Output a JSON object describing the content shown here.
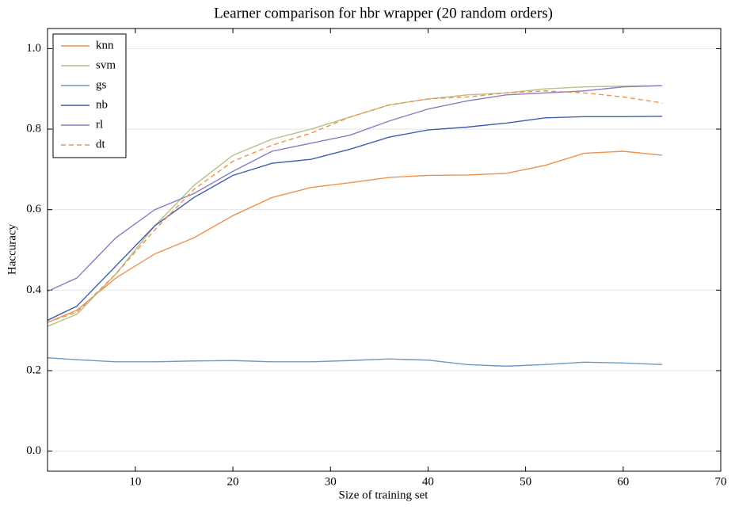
{
  "chart_data": {
    "type": "line",
    "title": "Learner comparison for hbr wrapper (20 random orders)",
    "x_label": "Size of training set",
    "y_label": "Haccuracy",
    "x": [
      1,
      4,
      8,
      12,
      16,
      20,
      24,
      28,
      32,
      36,
      40,
      44,
      48,
      52,
      56,
      60,
      64
    ],
    "series": [
      {
        "name": "knn",
        "color": "#f0914a",
        "linestyle": "solid",
        "values": [
          0.32,
          0.35,
          0.43,
          0.49,
          0.53,
          0.585,
          0.63,
          0.655,
          0.667,
          0.68,
          0.685,
          0.686,
          0.69,
          0.71,
          0.74,
          0.745,
          0.735
        ]
      },
      {
        "name": "svm",
        "color": "#b5c08a",
        "linestyle": "solid",
        "values": [
          0.31,
          0.34,
          0.44,
          0.56,
          0.66,
          0.735,
          0.775,
          0.8,
          0.83,
          0.86,
          0.875,
          0.885,
          0.89,
          0.9,
          0.905,
          0.907,
          0.908
        ]
      },
      {
        "name": "gs",
        "color": "#6b9ac4",
        "linestyle": "solid",
        "values": [
          0.232,
          0.227,
          0.222,
          0.222,
          0.224,
          0.225,
          0.222,
          0.222,
          0.225,
          0.229,
          0.226,
          0.215,
          0.211,
          0.215,
          0.221,
          0.219,
          0.215
        ]
      },
      {
        "name": "nb",
        "color": "#3e5fb0",
        "linestyle": "solid",
        "values": [
          0.325,
          0.36,
          0.46,
          0.56,
          0.63,
          0.685,
          0.715,
          0.725,
          0.75,
          0.78,
          0.798,
          0.805,
          0.815,
          0.828,
          0.831,
          0.831,
          0.832
        ]
      },
      {
        "name": "rl",
        "color": "#8a7bc4",
        "linestyle": "solid",
        "values": [
          0.397,
          0.43,
          0.53,
          0.6,
          0.64,
          0.695,
          0.745,
          0.765,
          0.785,
          0.82,
          0.85,
          0.87,
          0.885,
          0.89,
          0.895,
          0.905,
          0.908
        ]
      },
      {
        "name": "dt",
        "color": "#f0914a",
        "linestyle": "dashed",
        "values": [
          0.32,
          0.345,
          0.44,
          0.55,
          0.65,
          0.72,
          0.76,
          0.79,
          0.83,
          0.86,
          0.875,
          0.88,
          0.89,
          0.895,
          0.89,
          0.88,
          0.865
        ]
      }
    ],
    "xlim": [
      1,
      70
    ],
    "xticks": [
      10,
      20,
      30,
      40,
      50,
      60,
      70
    ],
    "ylim": [
      -0.05,
      1.05
    ],
    "yticks": [
      {
        "value": 0,
        "label": "0.0"
      },
      0.2,
      0.4,
      0.6,
      0.8,
      {
        "value": 1,
        "label": "1.0"
      }
    ],
    "grid": true,
    "legend": "upper-left"
  }
}
